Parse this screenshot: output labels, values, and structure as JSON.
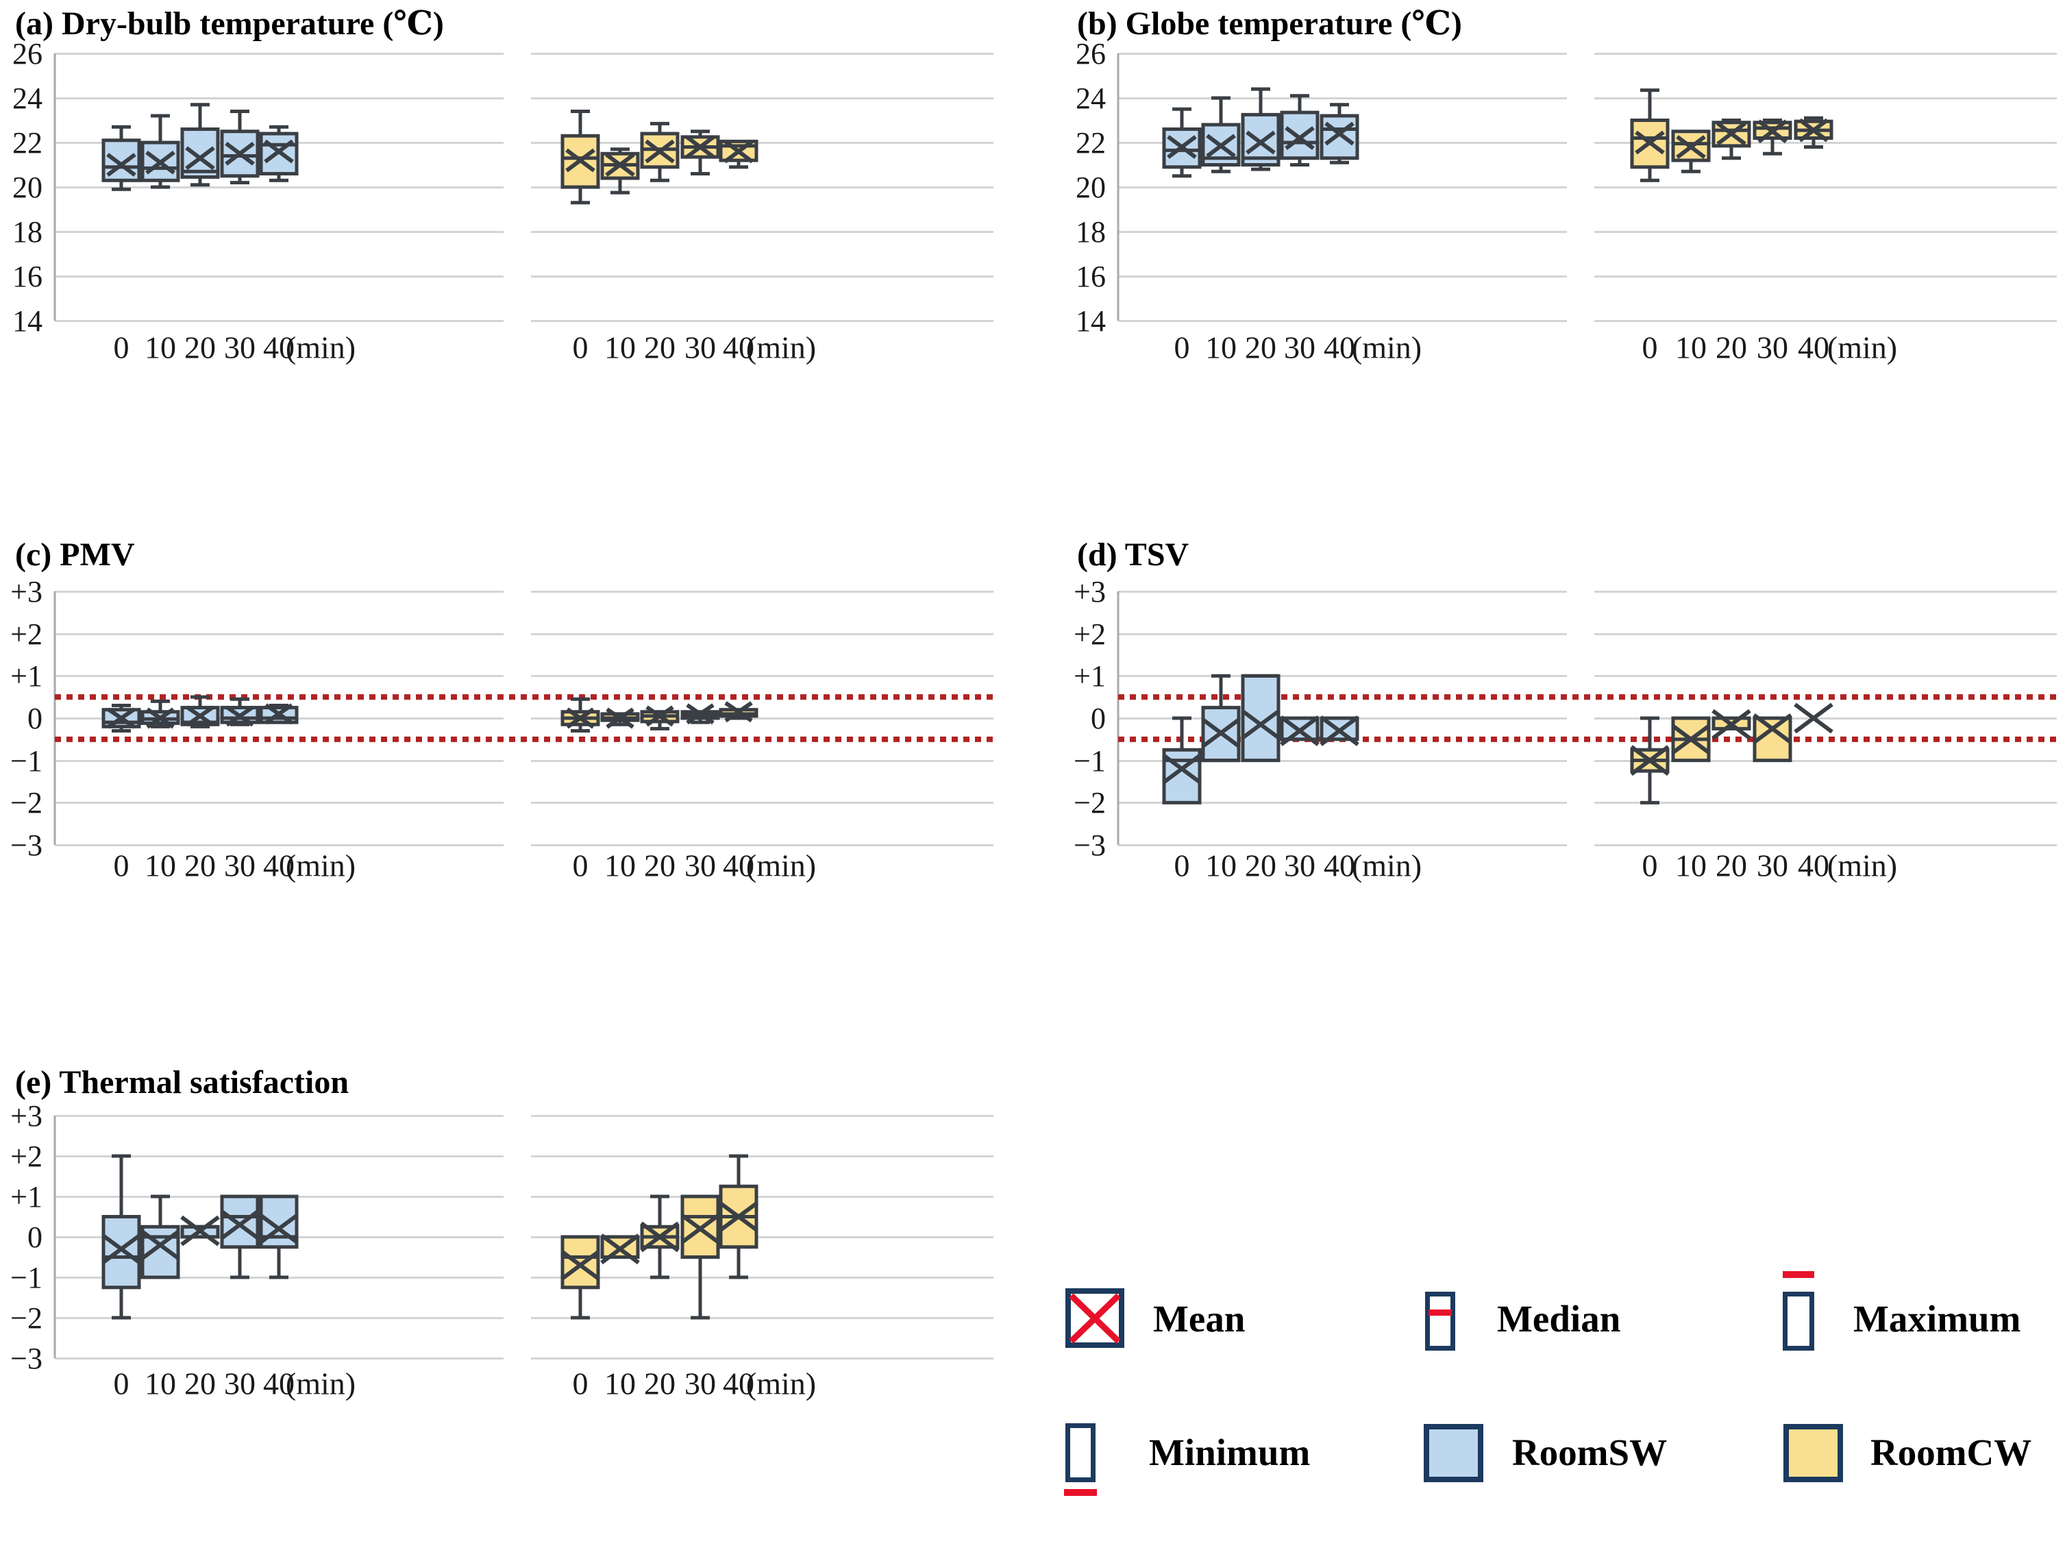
{
  "axis": {
    "time_ticks": [
      "0",
      "10",
      "20",
      "30",
      "40"
    ],
    "time_unit": "(min)"
  },
  "colors": {
    "room_sw_fill": "#BDD7EE",
    "room_cw_fill": "#FBDF90",
    "box_stroke": "#3A3F45",
    "grid": "#D4D4D4",
    "axis_line": "#A9A9A9",
    "ref_line_red": "#B22222",
    "legend_red": "#E8112A",
    "legend_navy": "#1C3A5E"
  },
  "legend": {
    "items": [
      {
        "label": "Mean"
      },
      {
        "label": "Median"
      },
      {
        "label": "Maximum"
      },
      {
        "label": "Minimum"
      },
      {
        "label": "RoomSW"
      },
      {
        "label": "RoomCW"
      }
    ]
  },
  "chart_data": [
    {
      "id": "a",
      "type": "boxplot",
      "title": "(a) Dry-bulb temperature (℃)",
      "ylim": [
        14,
        26
      ],
      "yticks": [
        "26",
        "24",
        "22",
        "20",
        "18",
        "16",
        "14"
      ],
      "categories": [
        0,
        10,
        20,
        30,
        40
      ],
      "ref_lines": [],
      "series": [
        {
          "name": "RoomSW",
          "color": "#BDD7EE",
          "boxes": [
            {
              "min": 19.9,
              "q1": 20.3,
              "med": 20.9,
              "q3": 22.1,
              "max": 22.7,
              "mean": 21.0
            },
            {
              "min": 20.0,
              "q1": 20.3,
              "med": 20.85,
              "q3": 22.0,
              "max": 23.2,
              "mean": 21.1
            },
            {
              "min": 20.1,
              "q1": 20.45,
              "med": 20.7,
              "q3": 22.6,
              "max": 23.7,
              "mean": 21.3
            },
            {
              "min": 20.2,
              "q1": 20.5,
              "med": 21.4,
              "q3": 22.5,
              "max": 23.4,
              "mean": 21.5
            },
            {
              "min": 20.3,
              "q1": 20.6,
              "med": 21.9,
              "q3": 22.4,
              "max": 22.7,
              "mean": 21.6
            }
          ]
        },
        {
          "name": "RoomCW",
          "color": "#FBDF90",
          "boxes": [
            {
              "min": 19.3,
              "q1": 20.0,
              "med": 21.3,
              "q3": 22.3,
              "max": 23.4,
              "mean": 21.2
            },
            {
              "min": 19.75,
              "q1": 20.4,
              "med": 21.0,
              "q3": 21.5,
              "max": 21.7,
              "mean": 21.0
            },
            {
              "min": 20.3,
              "q1": 20.9,
              "med": 21.7,
              "q3": 22.4,
              "max": 22.85,
              "mean": 21.6
            },
            {
              "min": 20.6,
              "q1": 21.35,
              "med": 21.8,
              "q3": 22.25,
              "max": 22.5,
              "mean": 21.8
            },
            {
              "min": 20.9,
              "q1": 21.2,
              "med": 21.85,
              "q3": 22.05,
              "max": 22.05,
              "mean": 21.6
            }
          ]
        }
      ]
    },
    {
      "id": "b",
      "type": "boxplot",
      "title": "(b) Globe temperature (℃)",
      "ylim": [
        14,
        26
      ],
      "yticks": [
        "26",
        "24",
        "22",
        "20",
        "18",
        "16",
        "14"
      ],
      "categories": [
        0,
        10,
        20,
        30,
        40
      ],
      "ref_lines": [],
      "series": [
        {
          "name": "RoomSW",
          "color": "#BDD7EE",
          "boxes": [
            {
              "min": 20.5,
              "q1": 20.9,
              "med": 21.65,
              "q3": 22.6,
              "max": 23.5,
              "mean": 21.8
            },
            {
              "min": 20.7,
              "q1": 21.0,
              "med": 21.3,
              "q3": 22.8,
              "max": 24.0,
              "mean": 21.85
            },
            {
              "min": 20.8,
              "q1": 21.0,
              "med": 21.3,
              "q3": 23.25,
              "max": 24.4,
              "mean": 22.0
            },
            {
              "min": 21.0,
              "q1": 21.3,
              "med": 22.0,
              "q3": 23.35,
              "max": 24.1,
              "mean": 22.2
            },
            {
              "min": 21.1,
              "q1": 21.3,
              "med": 22.6,
              "q3": 23.2,
              "max": 23.7,
              "mean": 22.4
            }
          ]
        },
        {
          "name": "RoomCW",
          "color": "#FBDF90",
          "boxes": [
            {
              "min": 20.3,
              "q1": 20.9,
              "med": 22.2,
              "q3": 23.0,
              "max": 24.35,
              "mean": 22.0
            },
            {
              "min": 20.7,
              "q1": 21.2,
              "med": 21.95,
              "q3": 22.5,
              "max": 22.5,
              "mean": 21.8
            },
            {
              "min": 21.3,
              "q1": 21.85,
              "med": 22.55,
              "q3": 22.9,
              "max": 23.0,
              "mean": 22.4
            },
            {
              "min": 21.5,
              "q1": 22.2,
              "med": 22.65,
              "q3": 22.9,
              "max": 23.0,
              "mean": 22.5
            },
            {
              "min": 21.8,
              "q1": 22.2,
              "med": 22.55,
              "q3": 22.95,
              "max": 23.1,
              "mean": 22.55
            }
          ]
        }
      ]
    },
    {
      "id": "c",
      "type": "boxplot",
      "title": "(c) PMV",
      "ylim": [
        -3,
        3
      ],
      "yticks": [
        "+3",
        "+2",
        "+1",
        "0",
        "−1",
        "−2",
        "−3"
      ],
      "categories": [
        0,
        10,
        20,
        30,
        40
      ],
      "ref_lines": [
        0.5,
        -0.5
      ],
      "series": [
        {
          "name": "RoomSW",
          "color": "#BDD7EE",
          "boxes": [
            {
              "min": -0.3,
              "q1": -0.2,
              "med": -0.1,
              "q3": 0.2,
              "max": 0.3,
              "mean": 0.0
            },
            {
              "min": -0.2,
              "q1": -0.12,
              "med": -0.02,
              "q3": 0.15,
              "max": 0.4,
              "mean": 0.0
            },
            {
              "min": -0.2,
              "q1": -0.15,
              "med": -0.1,
              "q3": 0.25,
              "max": 0.5,
              "mean": 0.05
            },
            {
              "min": -0.15,
              "q1": -0.1,
              "med": 0.0,
              "q3": 0.25,
              "max": 0.45,
              "mean": 0.05
            },
            {
              "min": -0.1,
              "q1": -0.1,
              "med": 0.0,
              "q3": 0.25,
              "max": 0.3,
              "mean": 0.1
            }
          ]
        },
        {
          "name": "RoomCW",
          "color": "#FBDF90",
          "boxes": [
            {
              "min": -0.3,
              "q1": -0.15,
              "med": 0.0,
              "q3": 0.15,
              "max": 0.45,
              "mean": 0.0
            },
            {
              "min": -0.15,
              "q1": -0.05,
              "med": 0.0,
              "q3": 0.1,
              "max": 0.1,
              "mean": 0.0
            },
            {
              "min": -0.25,
              "q1": -0.08,
              "med": 0.05,
              "q3": 0.15,
              "max": 0.15,
              "mean": 0.05
            },
            {
              "min": -0.1,
              "q1": 0.0,
              "med": 0.08,
              "q3": 0.15,
              "max": 0.15,
              "mean": 0.1
            },
            {
              "min": 0.0,
              "q1": 0.05,
              "med": 0.1,
              "q3": 0.2,
              "max": 0.2,
              "mean": 0.15
            }
          ]
        }
      ]
    },
    {
      "id": "d",
      "type": "boxplot",
      "title": "(d) TSV",
      "ylim": [
        -3,
        3
      ],
      "yticks": [
        "+3",
        "+2",
        "+1",
        "0",
        "−1",
        "−2",
        "−3"
      ],
      "categories": [
        0,
        10,
        20,
        30,
        40
      ],
      "ref_lines": [
        0.5,
        -0.5
      ],
      "series": [
        {
          "name": "RoomSW",
          "color": "#BDD7EE",
          "boxes": [
            {
              "min": -2.0,
              "q1": -2.0,
              "med": -1.0,
              "q3": -0.75,
              "max": 0.0,
              "mean": -1.2
            },
            {
              "min": -1.0,
              "q1": -1.0,
              "med": -1.0,
              "q3": 0.25,
              "max": 1.0,
              "mean": -0.35
            },
            {
              "min": -1.0,
              "q1": -1.0,
              "med": 1.0,
              "q3": 1.0,
              "max": 1.0,
              "mean": -0.15
            },
            {
              "min": -0.5,
              "q1": -0.5,
              "med": 0.0,
              "q3": 0.0,
              "max": 0.0,
              "mean": -0.3
            },
            {
              "min": -0.5,
              "q1": -0.5,
              "med": 0.0,
              "q3": 0.0,
              "max": 0.0,
              "mean": -0.3
            }
          ]
        },
        {
          "name": "RoomCW",
          "color": "#FBDF90",
          "boxes": [
            {
              "min": -2.0,
              "q1": -1.25,
              "med": -1.0,
              "q3": -0.75,
              "max": 0.0,
              "mean": -1.0
            },
            {
              "min": -1.0,
              "q1": -1.0,
              "med": -0.5,
              "q3": 0.0,
              "max": 0.0,
              "mean": -0.5
            },
            {
              "min": -0.25,
              "q1": -0.25,
              "med": 0.0,
              "q3": 0.0,
              "max": 0.0,
              "mean": -0.15
            },
            {
              "min": -1.0,
              "q1": -1.0,
              "med": 0.0,
              "q3": 0.0,
              "max": 0.0,
              "mean": -0.25
            },
            {
              "min": null,
              "q1": null,
              "med": null,
              "q3": null,
              "max": null,
              "mean": 0.0
            }
          ]
        }
      ]
    },
    {
      "id": "e",
      "type": "boxplot",
      "title": "(e) Thermal satisfaction",
      "ylim": [
        -3,
        3
      ],
      "yticks": [
        "+3",
        "+2",
        "+1",
        "0",
        "−1",
        "−2",
        "−3"
      ],
      "categories": [
        0,
        10,
        20,
        30,
        40
      ],
      "ref_lines": [],
      "series": [
        {
          "name": "RoomSW",
          "color": "#BDD7EE",
          "boxes": [
            {
              "min": -2.0,
              "q1": -1.25,
              "med": -0.5,
              "q3": 0.5,
              "max": 2.0,
              "mean": -0.3
            },
            {
              "min": -1.0,
              "q1": -1.0,
              "med": 0.0,
              "q3": 0.25,
              "max": 1.0,
              "mean": -0.2
            },
            {
              "min": 0.0,
              "q1": 0.0,
              "med": 0.25,
              "q3": 0.25,
              "max": 0.25,
              "mean": 0.15
            },
            {
              "min": -1.0,
              "q1": -0.25,
              "med": 0.5,
              "q3": 1.0,
              "max": 1.0,
              "mean": 0.3
            },
            {
              "min": -1.0,
              "q1": -0.25,
              "med": 0.0,
              "q3": 1.0,
              "max": 1.0,
              "mean": 0.2
            }
          ]
        },
        {
          "name": "RoomCW",
          "color": "#FBDF90",
          "boxes": [
            {
              "min": -2.0,
              "q1": -1.25,
              "med": -0.5,
              "q3": 0.0,
              "max": 0.0,
              "mean": -0.7
            },
            {
              "min": -0.5,
              "q1": -0.5,
              "med": 0.0,
              "q3": 0.0,
              "max": 0.0,
              "mean": -0.3
            },
            {
              "min": -1.0,
              "q1": -0.25,
              "med": 0.0,
              "q3": 0.25,
              "max": 1.0,
              "mean": 0.0
            },
            {
              "min": -2.0,
              "q1": -0.5,
              "med": 0.5,
              "q3": 1.0,
              "max": 1.0,
              "mean": 0.2
            },
            {
              "min": -1.0,
              "q1": -0.25,
              "med": 0.5,
              "q3": 1.25,
              "max": 2.0,
              "mean": 0.5
            }
          ]
        }
      ]
    }
  ]
}
